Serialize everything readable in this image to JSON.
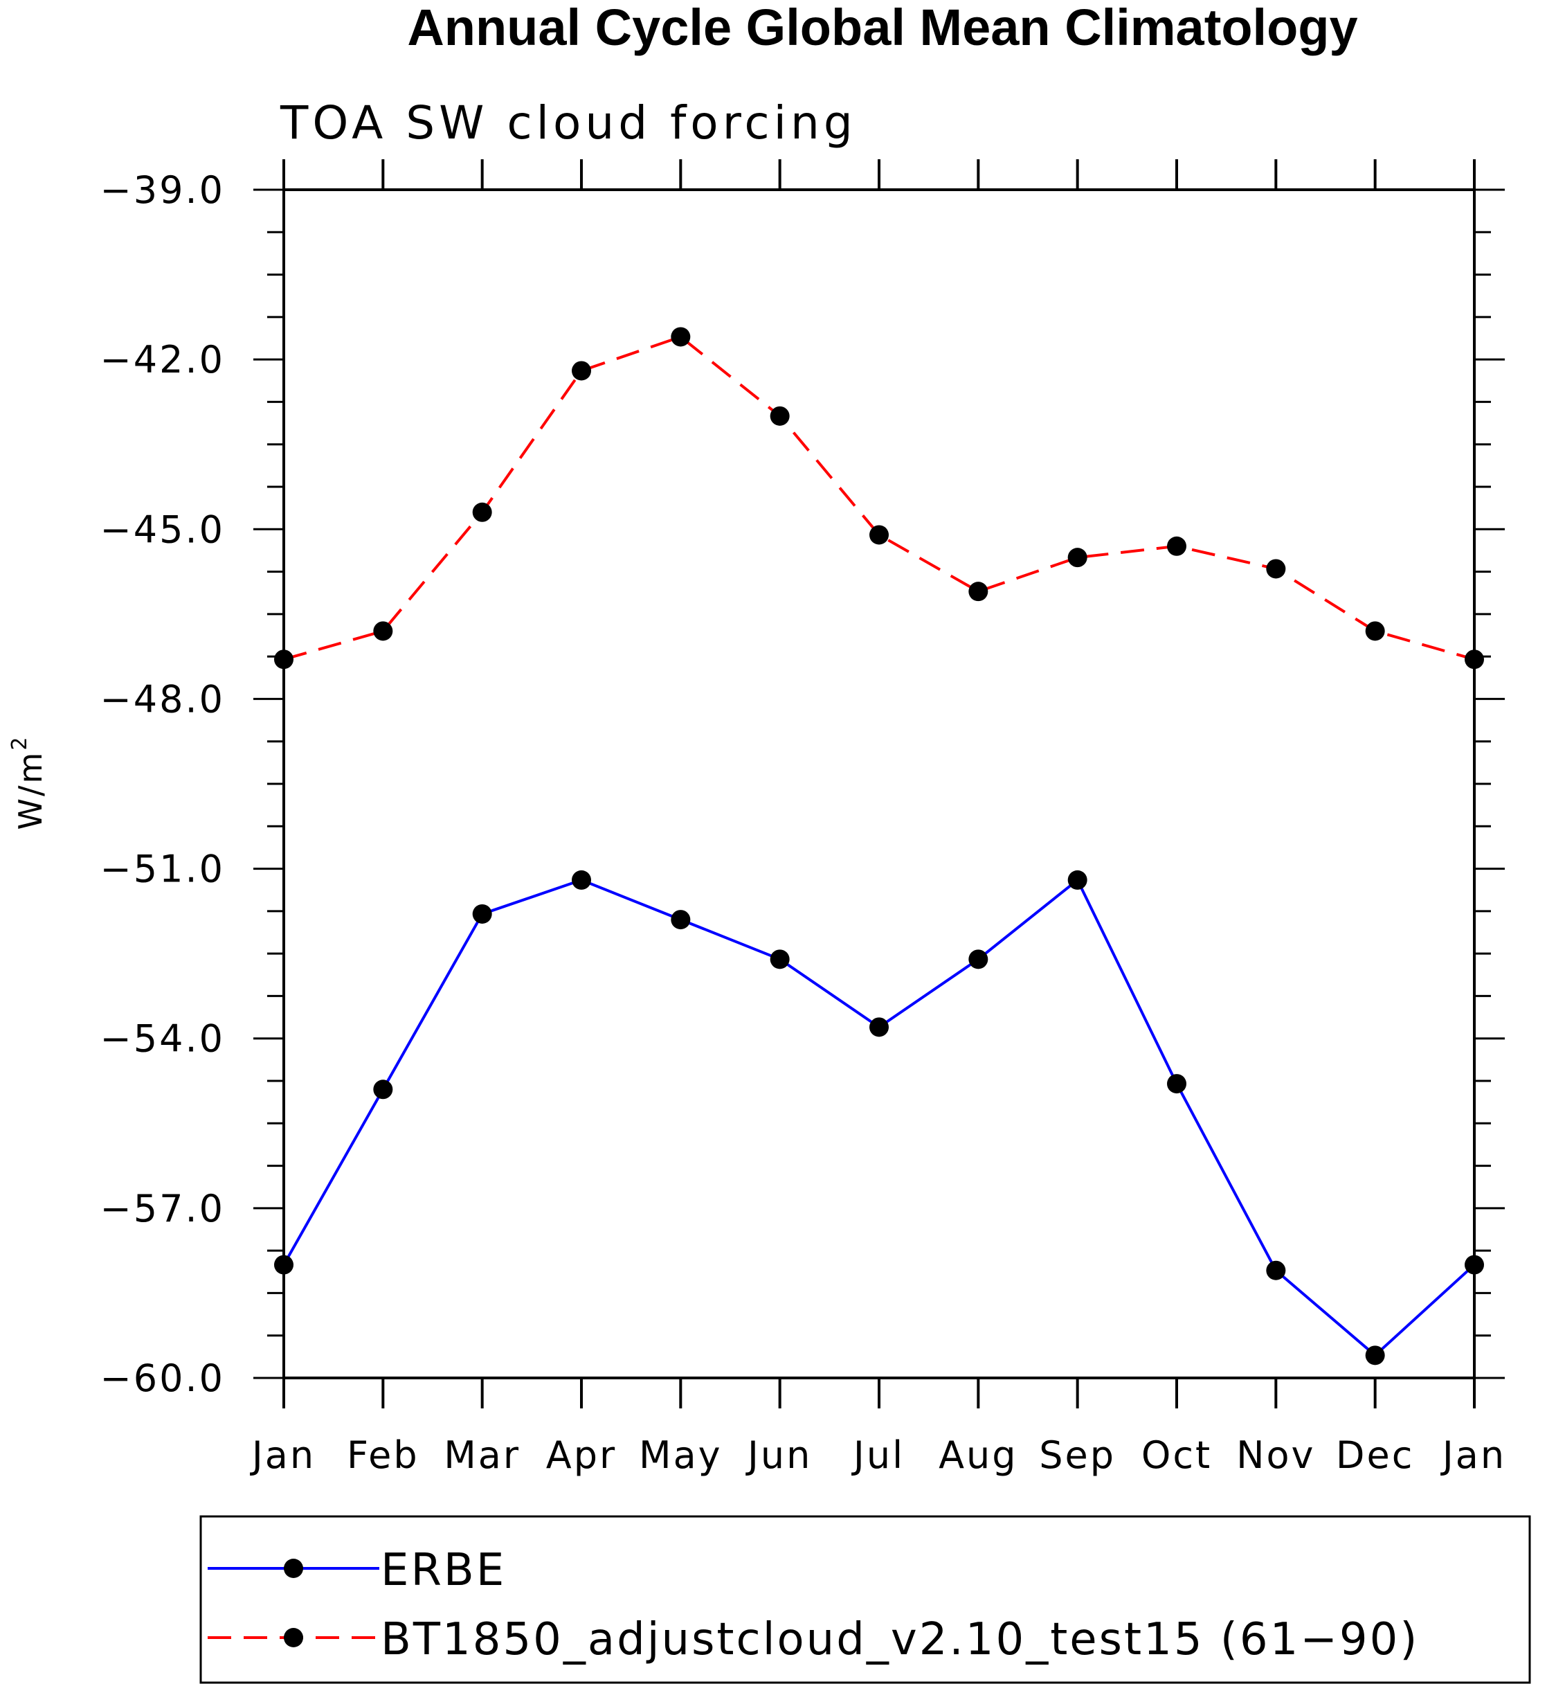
{
  "chart_data": {
    "type": "line",
    "title": "Annual Cycle Global Mean Climatology",
    "subtitle": "TOA SW cloud forcing",
    "ylabel": "W/m",
    "ylabel_sup": "2",
    "xlabel": "",
    "categories": [
      "Jan",
      "Feb",
      "Mar",
      "Apr",
      "May",
      "Jun",
      "Jul",
      "Aug",
      "Sep",
      "Oct",
      "Nov",
      "Dec",
      "Jan"
    ],
    "ylim": [
      -60.0,
      -39.0
    ],
    "yticks": [
      -60.0,
      -57.0,
      -54.0,
      -51.0,
      -48.0,
      -45.0,
      -42.0,
      -39.0
    ],
    "ytick_labels": [
      "−60.0",
      "−57.0",
      "−54.0",
      "−51.0",
      "−48.0",
      "−45.0",
      "−42.0",
      "−39.0"
    ],
    "series": [
      {
        "name": "ERBE",
        "color": "#0000ff",
        "dash": "solid",
        "marker": "circle",
        "values": [
          -58.0,
          -54.9,
          -51.8,
          -51.2,
          -51.9,
          -52.6,
          -53.8,
          -52.6,
          -51.2,
          -54.8,
          -58.1,
          -59.6,
          -58.0
        ]
      },
      {
        "name": "BT1850_adjustcloud_v2.10_test15 (61−90)",
        "color": "#ff0000",
        "dash": "dashed",
        "marker": "circle",
        "values": [
          -47.3,
          -46.8,
          -44.7,
          -42.2,
          -41.6,
          -43.0,
          -45.1,
          -46.1,
          -45.5,
          -45.3,
          -45.7,
          -46.8,
          -47.3
        ]
      }
    ],
    "grid": false,
    "legend": "bottom"
  }
}
